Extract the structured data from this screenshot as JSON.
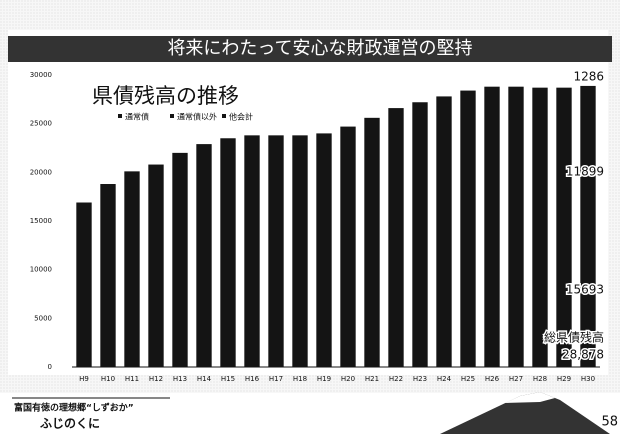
{
  "header": {
    "title": "将来にわたって安心な財政運営の堅持"
  },
  "chart_data": {
    "type": "bar",
    "title": "県債残高の推移",
    "legend": [
      "通常債",
      "通常債以外",
      "他会計"
    ],
    "categories": [
      "H9",
      "H10",
      "H11",
      "H12",
      "H13",
      "H14",
      "H15",
      "H16",
      "H17",
      "H18",
      "H19",
      "H20",
      "H21",
      "H22",
      "H23",
      "H24",
      "H25",
      "H26",
      "H27",
      "H28",
      "H29",
      "H30"
    ],
    "values": [
      16900,
      18800,
      20100,
      20800,
      22000,
      22900,
      23500,
      23800,
      23800,
      23800,
      24000,
      24700,
      25600,
      26600,
      27200,
      27800,
      28400,
      28800,
      28800,
      28700,
      28700,
      28878
    ],
    "color": "#141414",
    "ylim": [
      0,
      30000
    ],
    "yticks": [
      0,
      5000,
      10000,
      15000,
      20000,
      25000,
      30000
    ],
    "grid": false,
    "annotations": [
      "1286",
      "11899",
      "15693",
      "総県債残高",
      "28,878"
    ]
  },
  "footer": {
    "slogan": "富国有徳の理想郷“しずおか”",
    "brand": "ふじのくに",
    "page": "58"
  }
}
